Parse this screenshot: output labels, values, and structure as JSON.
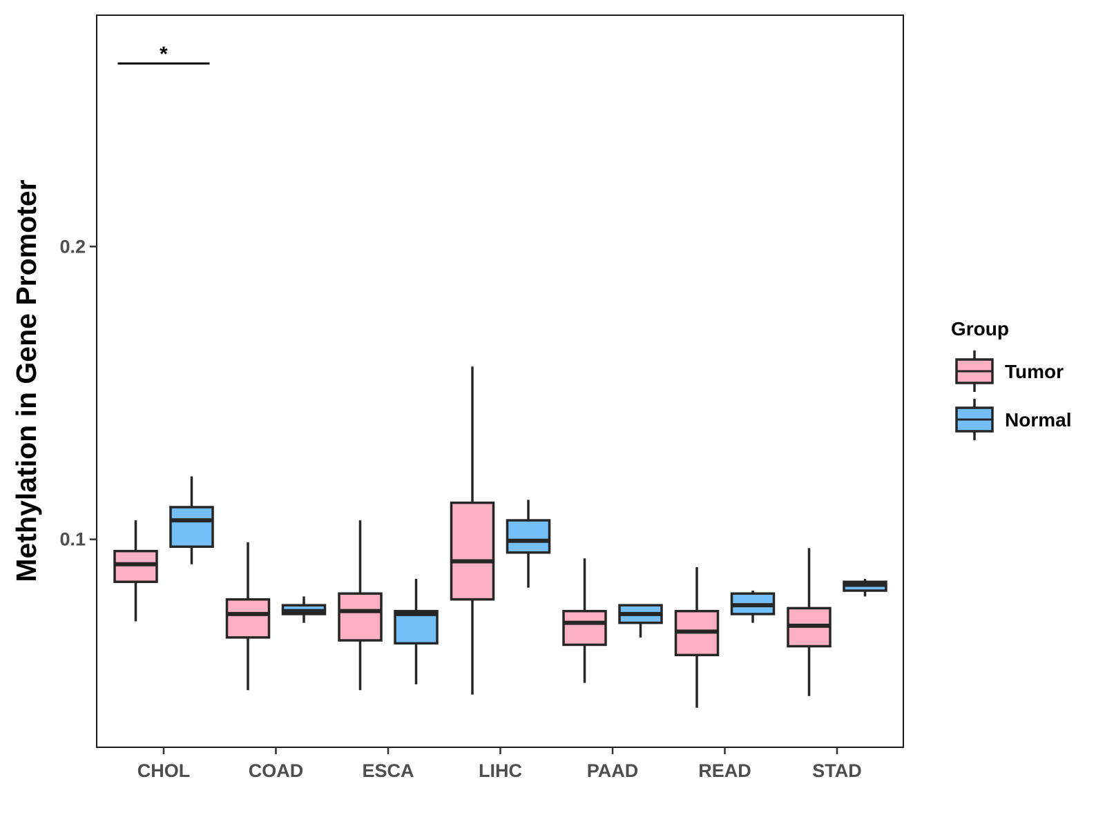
{
  "chart_data": {
    "type": "boxplot",
    "title": "",
    "xlabel": "",
    "ylabel": "Methylation in Gene Promoter",
    "ylim": [
      0.029,
      0.279
    ],
    "yticks": [
      0.1,
      0.2
    ],
    "ytick_labels": [
      "0.1",
      "0.2"
    ],
    "categories": [
      "CHOL",
      "COAD",
      "ESCA",
      "LIHC",
      "PAAD",
      "READ",
      "STAD"
    ],
    "legend": {
      "title": "Group",
      "position": "right",
      "entries": [
        {
          "name": "Tumor",
          "color": "#FBB1C3"
        },
        {
          "name": "Normal",
          "color": "#74BFF7"
        }
      ]
    },
    "series": [
      {
        "name": "Tumor",
        "color": "#FBB1C3",
        "boxes": [
          {
            "category": "CHOL",
            "min": 0.072,
            "q1": 0.0855,
            "median": 0.0915,
            "q3": 0.096,
            "max": 0.1065
          },
          {
            "category": "COAD",
            "min": 0.0485,
            "q1": 0.0665,
            "median": 0.0745,
            "q3": 0.0795,
            "max": 0.099
          },
          {
            "category": "ESCA",
            "min": 0.0485,
            "q1": 0.0655,
            "median": 0.0755,
            "q3": 0.0815,
            "max": 0.1065
          },
          {
            "category": "LIHC",
            "min": 0.047,
            "q1": 0.0795,
            "median": 0.0925,
            "q3": 0.1125,
            "max": 0.159
          },
          {
            "category": "PAAD",
            "min": 0.051,
            "q1": 0.064,
            "median": 0.0715,
            "q3": 0.0755,
            "max": 0.0935
          },
          {
            "category": "READ",
            "min": 0.0425,
            "q1": 0.0605,
            "median": 0.0685,
            "q3": 0.0755,
            "max": 0.0905
          },
          {
            "category": "STAD",
            "min": 0.0465,
            "q1": 0.0635,
            "median": 0.0705,
            "q3": 0.0765,
            "max": 0.097
          }
        ]
      },
      {
        "name": "Normal",
        "color": "#74BFF7",
        "boxes": [
          {
            "category": "CHOL",
            "min": 0.0915,
            "q1": 0.0975,
            "median": 0.1065,
            "q3": 0.111,
            "max": 0.1215
          },
          {
            "category": "COAD",
            "min": 0.0715,
            "q1": 0.0745,
            "median": 0.0755,
            "q3": 0.0775,
            "max": 0.0805
          },
          {
            "category": "ESCA",
            "min": 0.0505,
            "q1": 0.0645,
            "median": 0.0745,
            "q3": 0.0755,
            "max": 0.0865
          },
          {
            "category": "LIHC",
            "min": 0.0835,
            "q1": 0.0955,
            "median": 0.0995,
            "q3": 0.1065,
            "max": 0.1135
          },
          {
            "category": "PAAD",
            "min": 0.0665,
            "q1": 0.0715,
            "median": 0.0745,
            "q3": 0.0775,
            "max": 0.0775
          },
          {
            "category": "READ",
            "min": 0.0715,
            "q1": 0.0745,
            "median": 0.0775,
            "q3": 0.0815,
            "max": 0.0825
          },
          {
            "category": "STAD",
            "min": 0.0805,
            "q1": 0.0825,
            "median": 0.0845,
            "q3": 0.0855,
            "max": 0.0865
          }
        ]
      }
    ],
    "annotations": [
      {
        "category": "CHOL",
        "text": "*",
        "y": 0.2625
      }
    ]
  }
}
